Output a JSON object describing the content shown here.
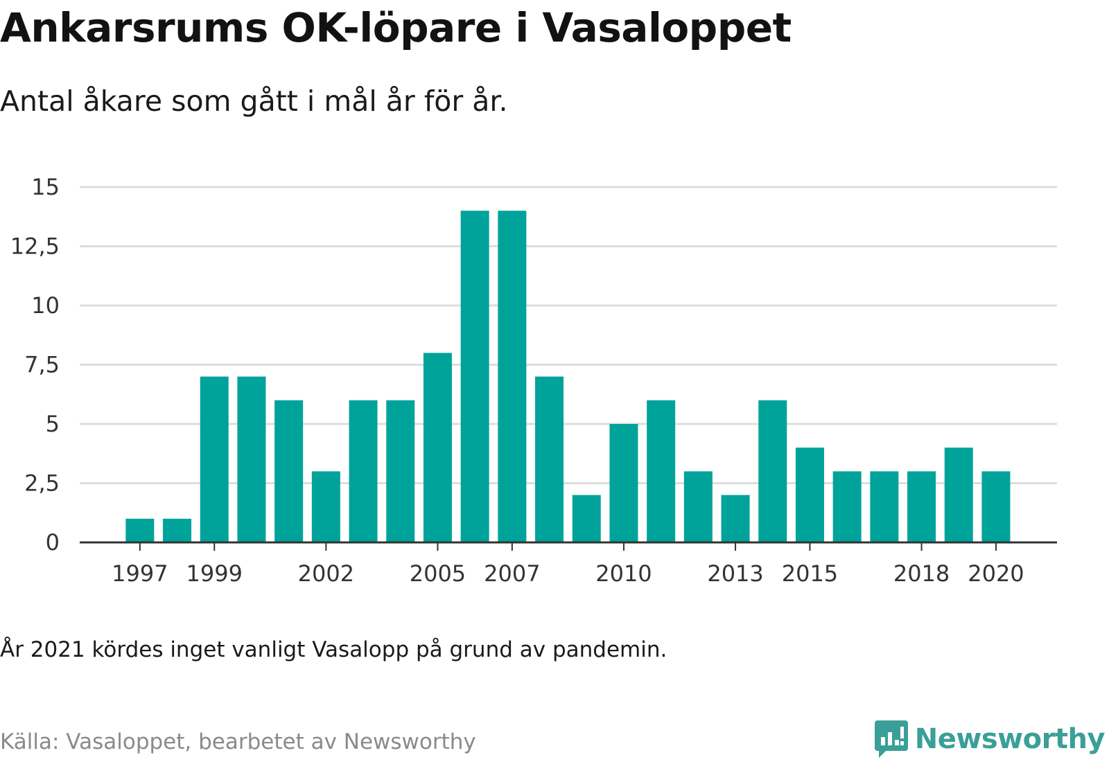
{
  "header": {
    "title": "Ankarsrums OK-löpare i Vasaloppet",
    "subtitle": "Antal åkare som gått i mål år för år."
  },
  "chart_data": {
    "type": "bar",
    "title": "Ankarsrums OK-löpare i Vasaloppet",
    "subtitle": "Antal åkare som gått i mål år för år.",
    "xlabel": "",
    "ylabel": "",
    "categories": [
      "1997",
      "1998",
      "1999",
      "2000",
      "2001",
      "2002",
      "2003",
      "2004",
      "2005",
      "2006",
      "2007",
      "2008",
      "2009",
      "2010",
      "2011",
      "2012",
      "2013",
      "2014",
      "2015",
      "2016",
      "2017",
      "2018",
      "2019",
      "2020"
    ],
    "values": [
      1,
      1,
      7,
      7,
      6,
      3,
      6,
      6,
      8,
      14,
      14,
      7,
      2,
      5,
      6,
      3,
      2,
      6,
      4,
      3,
      3,
      3,
      4,
      3
    ],
    "x_tick_labels": [
      "1997",
      "1999",
      "2002",
      "2005",
      "2007",
      "2010",
      "2013",
      "2015",
      "2018",
      "2020"
    ],
    "y_ticks": [
      0,
      2.5,
      5,
      7.5,
      10,
      12.5,
      15
    ],
    "y_tick_labels": [
      "0",
      "2,5",
      "5",
      "7,5",
      "10",
      "12,5",
      "15"
    ],
    "ylim": [
      0,
      15
    ],
    "grid": "horizontal",
    "legend": "none",
    "bar_color": "#00a39a",
    "grid_color": "#dddddd",
    "axis_color": "#333333"
  },
  "footer": {
    "note": "År 2021 kördes inget vanligt Vasalopp på grund av pandemin.",
    "source": "Källa: Vasaloppet, bearbetet av Newsworthy",
    "brand": "Newsworthy",
    "brand_icon": "newsworthy-logo-icon",
    "brand_color": "#3a9f98"
  }
}
